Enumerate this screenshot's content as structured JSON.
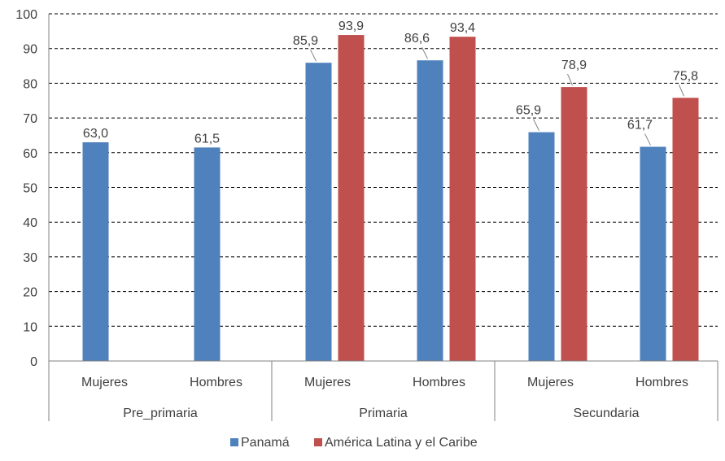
{
  "chart_data": {
    "type": "bar",
    "title": "",
    "xlabel": "",
    "ylabel": "",
    "ylim": [
      0,
      100
    ],
    "yticks": [
      0,
      10,
      20,
      30,
      40,
      50,
      60,
      70,
      80,
      90,
      100
    ],
    "grid": "horizontal dashed",
    "legend_position": "bottom",
    "groups": [
      {
        "label": "Pre_primaria",
        "categories": [
          "Mujeres",
          "Hombres"
        ]
      },
      {
        "label": "Primaria",
        "categories": [
          "Mujeres",
          "Hombres"
        ]
      },
      {
        "label": "Secundaria",
        "categories": [
          "Mujeres",
          "Hombres"
        ]
      }
    ],
    "categories": [
      "Mujeres",
      "Hombres",
      "Mujeres",
      "Hombres",
      "Mujeres",
      "Hombres"
    ],
    "series": [
      {
        "name": "Panamá",
        "color": "#4f81bd",
        "values": [
          63.0,
          61.5,
          85.9,
          86.6,
          65.9,
          61.7
        ],
        "labels": [
          "63,0",
          "61,5",
          "85,9",
          "86,6",
          "65,9",
          "61,7"
        ]
      },
      {
        "name": "América Latina y el Caribe",
        "color": "#c0504d",
        "values": [
          null,
          null,
          93.9,
          93.4,
          78.9,
          75.8
        ],
        "labels": [
          "",
          "",
          "93,9",
          "93,4",
          "78,9",
          "75,8"
        ]
      }
    ]
  }
}
